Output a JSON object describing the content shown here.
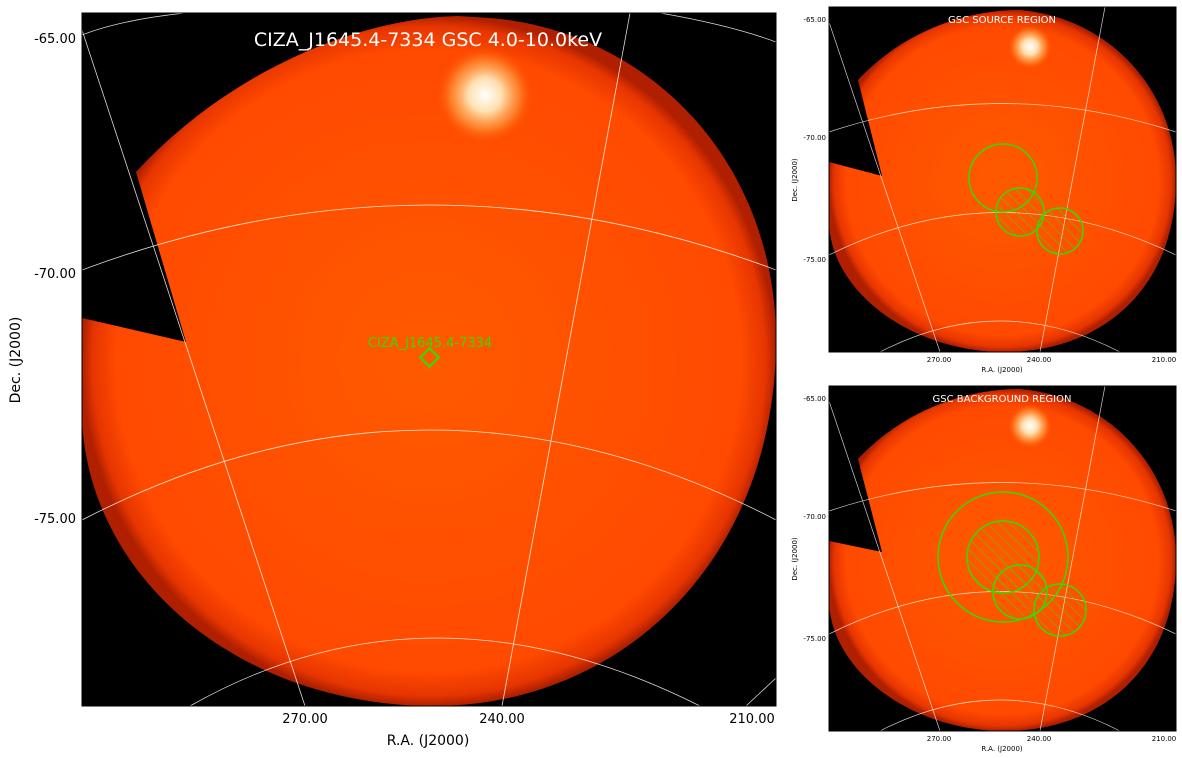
{
  "main": {
    "title": "CIZA_J1645.4-7334 GSC 4.0-10.0keV",
    "xlabel": "R.A. (J2000)",
    "ylabel": "Dec. (J2000)",
    "yticks": [
      "-65.00",
      "-70.00",
      "-75.00"
    ],
    "xticks": [
      "270.00",
      "240.00",
      "210.00"
    ],
    "source_label": "CIZA_J1645.4-7334"
  },
  "source_panel": {
    "title": "GSC SOURCE REGION",
    "xlabel": "R.A. (J2000)",
    "ylabel": "Dec. (J2000)",
    "yticks": [
      "-65.00",
      "-70.00",
      "-75.00"
    ],
    "xticks": [
      "270.00",
      "240.00",
      "210.00"
    ]
  },
  "background_panel": {
    "title": "GSC BACKGROUND REGION",
    "xlabel": "R.A. (J2000)",
    "ylabel": "Dec. (J2000)",
    "yticks": [
      "-65.00",
      "-70.00",
      "-75.00"
    ],
    "xticks": [
      "270.00",
      "240.00",
      "210.00"
    ]
  },
  "colors": {
    "sky": "#ff4a00",
    "outside": "#000000",
    "region": "#33dd00",
    "grid": "#ffffff"
  }
}
